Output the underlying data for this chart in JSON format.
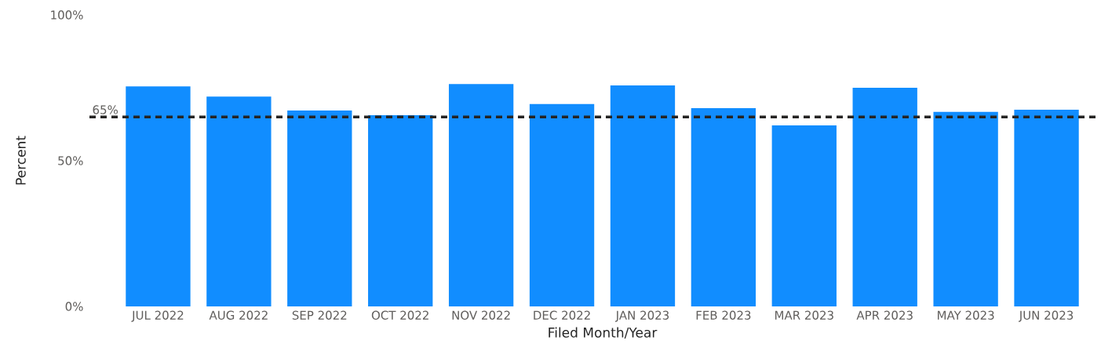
{
  "chart_data": {
    "type": "bar",
    "xlabel": "Filed Month/Year",
    "ylabel": "Percent",
    "categories": [
      "JUL 2022",
      "AUG 2022",
      "SEP 2022",
      "OCT 2022",
      "NOV 2022",
      "DEC 2022",
      "JAN 2023",
      "FEB 2023",
      "MAR 2023",
      "APR 2023",
      "MAY 2023",
      "JUN 2023"
    ],
    "values": [
      75.5,
      72,
      67.2,
      65.6,
      76.3,
      69.4,
      75.8,
      68,
      62.1,
      75,
      66.7,
      67.5
    ],
    "color": "#118dff",
    "ylim": [
      0,
      100
    ],
    "yticks": [
      {
        "value": 0,
        "label": "0%"
      },
      {
        "value": 50,
        "label": "50%"
      },
      {
        "value": 100,
        "label": "100%"
      }
    ],
    "ref_lines": [
      {
        "axis": "y",
        "value": 65,
        "label": "65%",
        "color": "#252423",
        "line_style": "dashed"
      }
    ],
    "grid": false
  }
}
